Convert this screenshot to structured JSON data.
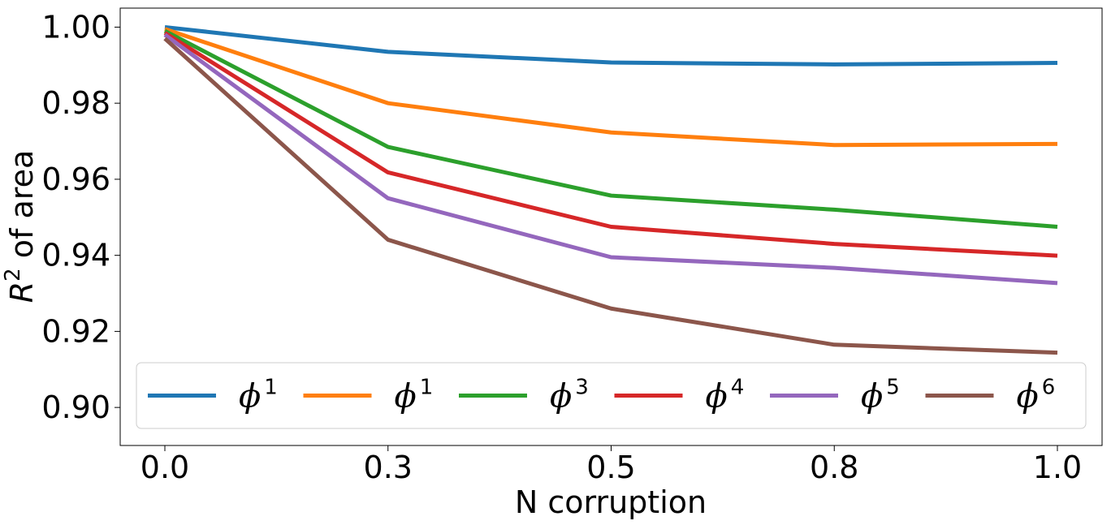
{
  "chart_data": {
    "type": "line",
    "xlabel": "N corruption",
    "ylabel_base": "R",
    "ylabel_sup": "2",
    "ylabel_rest": " of area",
    "x": [
      0.0,
      0.3,
      0.5,
      0.8,
      1.0
    ],
    "x_tick_labels": [
      "0.0",
      "0.3",
      "0.5",
      "0.8",
      "1.0"
    ],
    "ylim": [
      0.89,
      1.005
    ],
    "y_ticks": [
      0.9,
      0.92,
      0.94,
      0.96,
      0.98,
      1.0
    ],
    "y_tick_labels": [
      "0.90",
      "0.92",
      "0.94",
      "0.96",
      "0.98",
      "1.00"
    ],
    "grid": false,
    "legend_position": "bottom, single row",
    "series": [
      {
        "name": "ϕ",
        "sup": "1",
        "color": "#1f77b4",
        "values": [
          1.0,
          0.9935,
          0.9907,
          0.9902,
          0.9906
        ]
      },
      {
        "name": "ϕ",
        "sup": "1",
        "color": "#ff7f0e",
        "values": [
          0.9995,
          0.98,
          0.9723,
          0.969,
          0.9693
        ]
      },
      {
        "name": "ϕ",
        "sup": "3",
        "color": "#2ca02c",
        "values": [
          0.999,
          0.9685,
          0.9557,
          0.952,
          0.9475
        ]
      },
      {
        "name": "ϕ",
        "sup": "4",
        "color": "#d62728",
        "values": [
          0.9985,
          0.9618,
          0.9475,
          0.943,
          0.9399
        ]
      },
      {
        "name": "ϕ",
        "sup": "5",
        "color": "#9467bd",
        "values": [
          0.998,
          0.955,
          0.9395,
          0.9367,
          0.9327
        ]
      },
      {
        "name": "ϕ",
        "sup": "6",
        "color": "#8c564b",
        "values": [
          0.997,
          0.9441,
          0.926,
          0.9165,
          0.9144
        ]
      }
    ]
  }
}
